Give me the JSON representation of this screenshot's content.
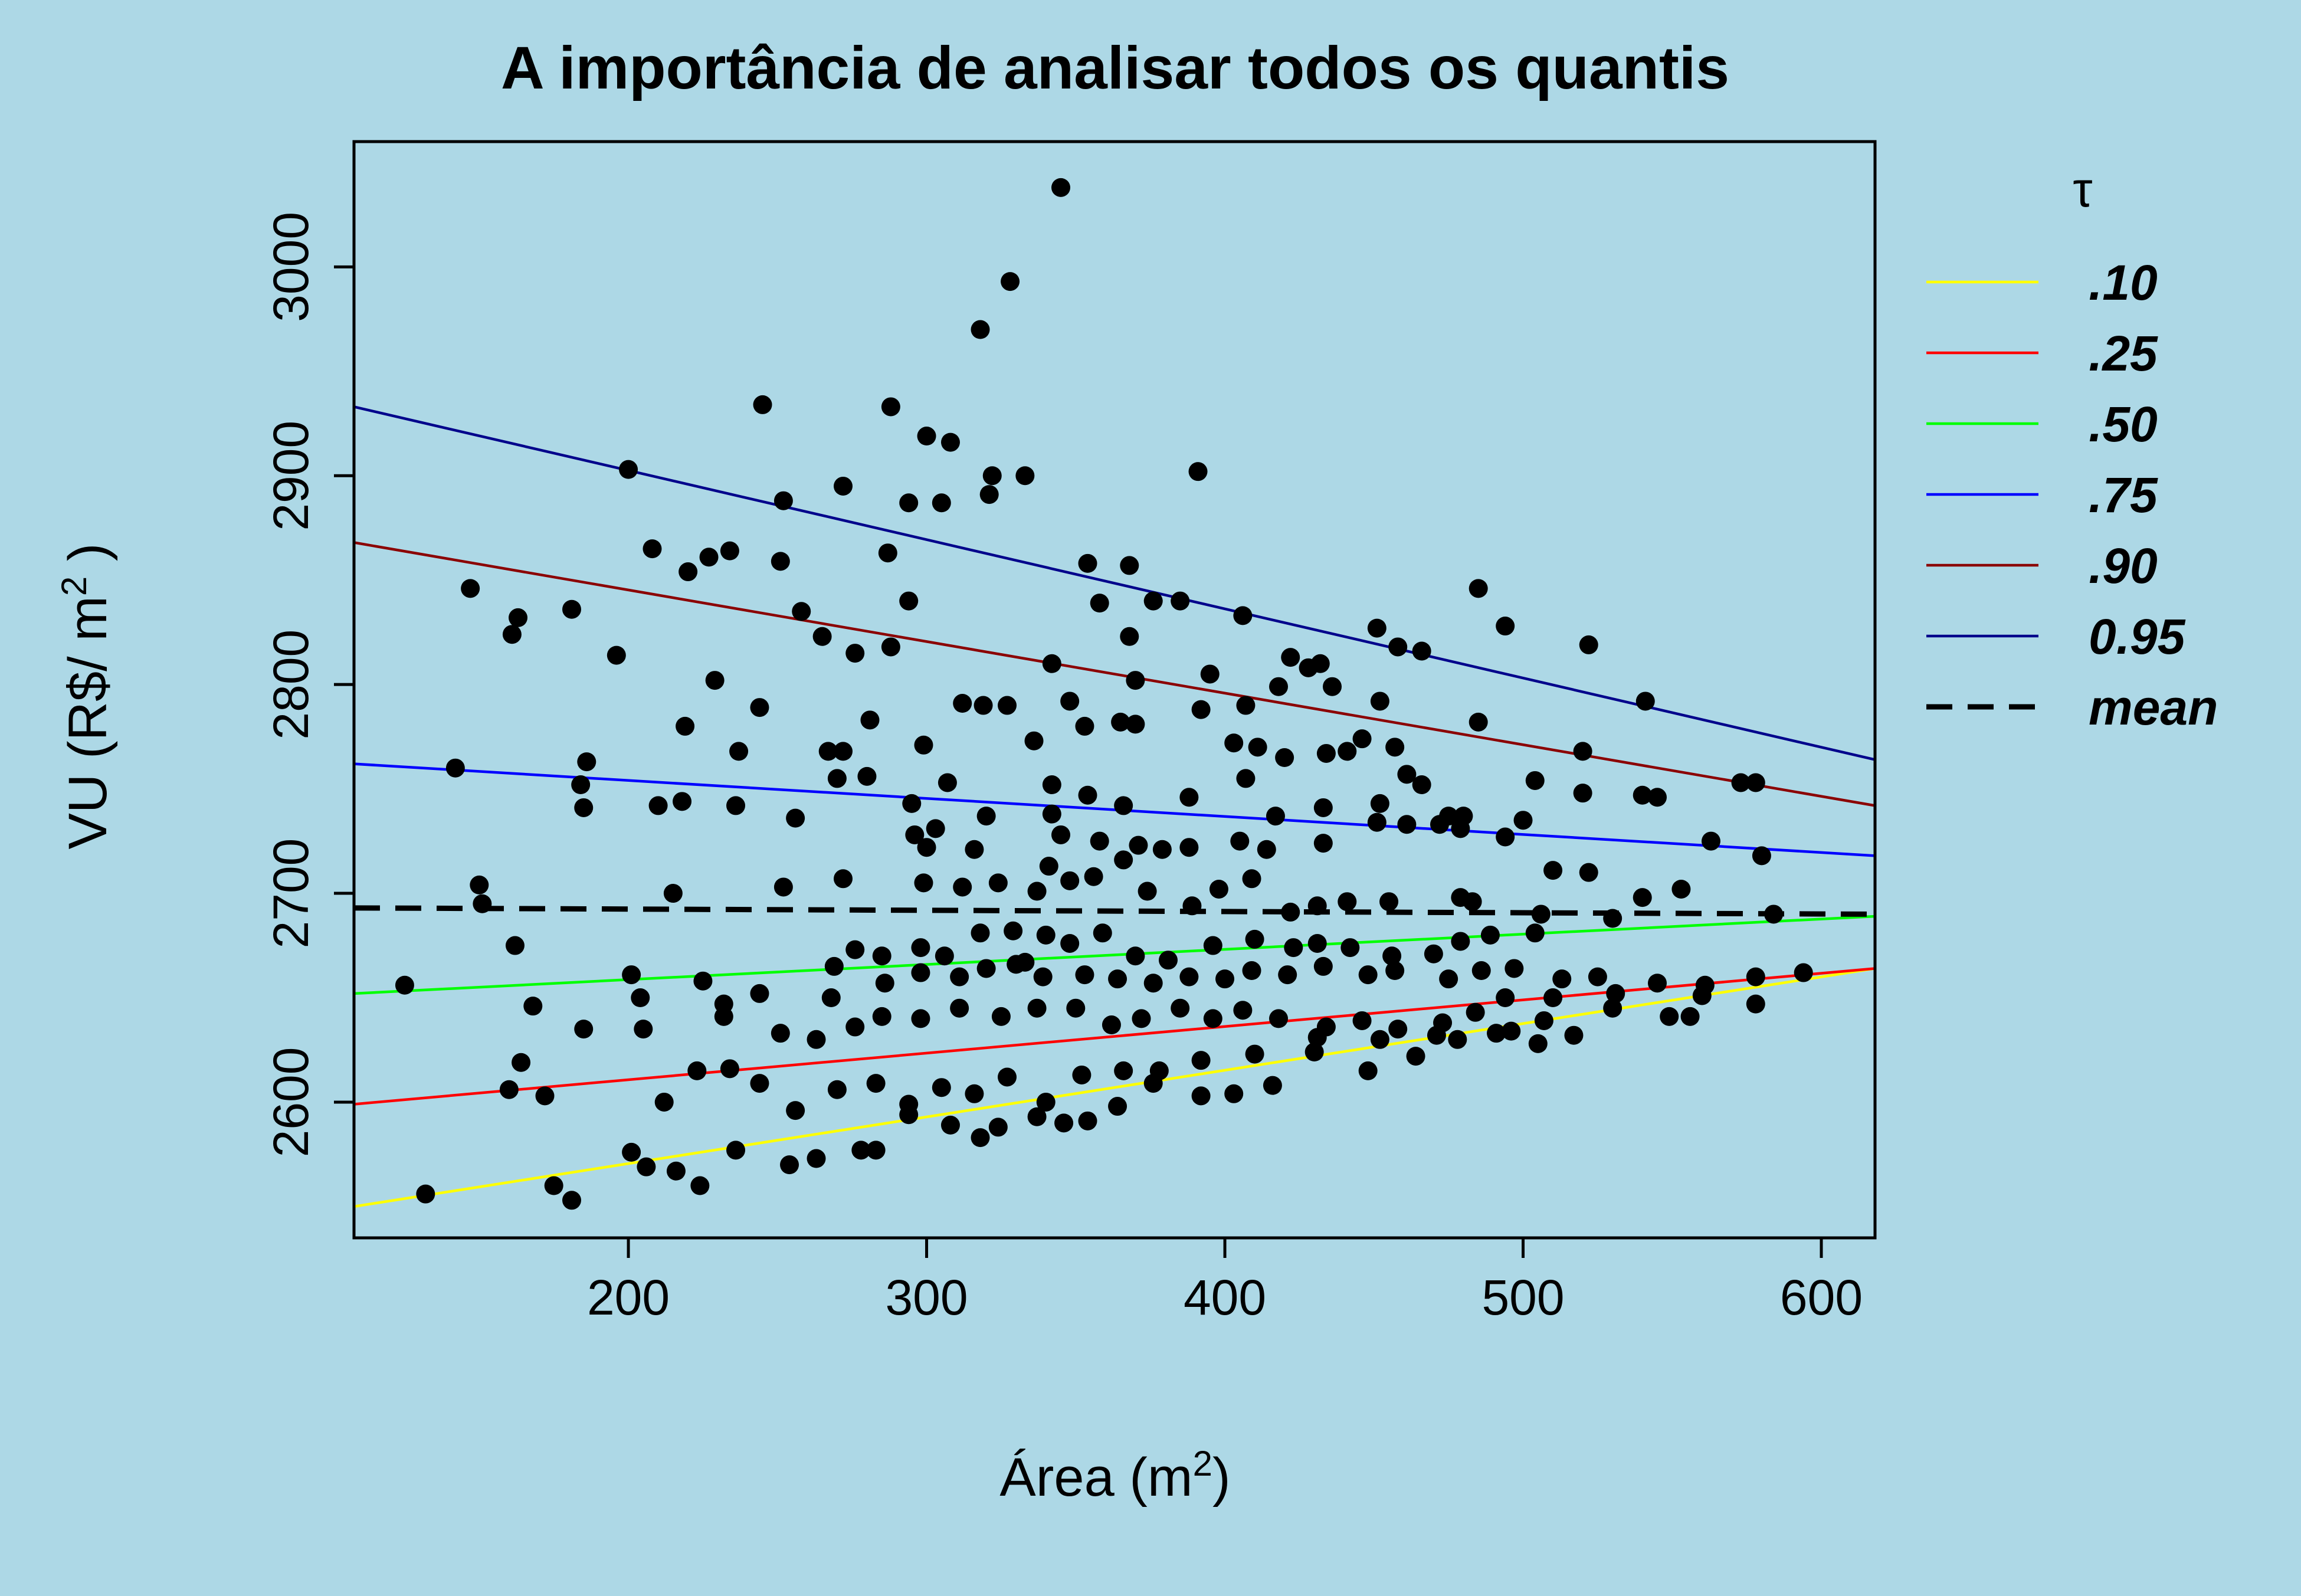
{
  "chart_data": {
    "type": "scatter",
    "title": "A importância de analisar todos os quantis",
    "xlabel_main": "Área (m",
    "xlabel_sup": "2",
    "xlabel_close": ")",
    "ylabel_main": "VU (R$/ m",
    "ylabel_sup": "2",
    "ylabel_close": " )",
    "xlim": [
      108,
      618
    ],
    "ylim": [
      2535,
      3060
    ],
    "x_ticks": [
      200,
      300,
      400,
      500,
      600
    ],
    "y_ticks": [
      2600,
      2700,
      2800,
      2900,
      3000
    ],
    "grid": false,
    "legend_position": "right (outside plot)",
    "legend_title": "τ",
    "lines": [
      {
        "name": ".10",
        "color": "#ffff00",
        "dash": false,
        "points": [
          [
            108,
            2550
          ],
          [
            618,
            2664
          ]
        ]
      },
      {
        "name": ".25",
        "color": "#ff0000",
        "dash": false,
        "points": [
          [
            108,
            2599
          ],
          [
            618,
            2664
          ]
        ]
      },
      {
        "name": ".50",
        "color": "#00ff00",
        "dash": false,
        "points": [
          [
            108,
            2652
          ],
          [
            618,
            2689
          ]
        ]
      },
      {
        "name": ".75",
        "color": "#0000ff",
        "dash": false,
        "points": [
          [
            108,
            2762
          ],
          [
            618,
            2718
          ]
        ]
      },
      {
        "name": ".90",
        "color": "#8b0000",
        "dash": false,
        "points": [
          [
            108,
            2868
          ],
          [
            618,
            2742
          ]
        ]
      },
      {
        "name": "0.95",
        "color": "#00008b",
        "dash": false,
        "points": [
          [
            108,
            2933
          ],
          [
            618,
            2764
          ]
        ]
      },
      {
        "name": "mean",
        "color": "#000000",
        "dash": true,
        "points": [
          [
            108,
            2693
          ],
          [
            618,
            2690
          ]
        ]
      }
    ],
    "points": [
      [
        345,
        3038
      ],
      [
        328,
        2993
      ],
      [
        318,
        2970
      ],
      [
        245,
        2934
      ],
      [
        288,
        2933
      ],
      [
        300,
        2919
      ],
      [
        308,
        2916
      ],
      [
        200,
        2903
      ],
      [
        322,
        2900
      ],
      [
        333,
        2900
      ],
      [
        391,
        2902
      ],
      [
        252,
        2888
      ],
      [
        294,
        2887
      ],
      [
        305,
        2887
      ],
      [
        321,
        2891
      ],
      [
        272,
        2895
      ],
      [
        208,
        2865
      ],
      [
        234,
        2864
      ],
      [
        227,
        2861
      ],
      [
        220,
        2854
      ],
      [
        251,
        2859
      ],
      [
        287,
        2863
      ],
      [
        354,
        2858
      ],
      [
        368,
        2857
      ],
      [
        147,
        2846
      ],
      [
        163,
        2832
      ],
      [
        161,
        2824
      ],
      [
        181,
        2836
      ],
      [
        258,
        2835
      ],
      [
        294,
        2840
      ],
      [
        358,
        2839
      ],
      [
        376,
        2840
      ],
      [
        385,
        2840
      ],
      [
        406,
        2833
      ],
      [
        196,
        2814
      ],
      [
        265,
        2823
      ],
      [
        276,
        2815
      ],
      [
        288,
        2818
      ],
      [
        342,
        2810
      ],
      [
        368,
        2823
      ],
      [
        395,
        2805
      ],
      [
        422,
        2813
      ],
      [
        428,
        2808
      ],
      [
        432,
        2810
      ],
      [
        451,
        2827
      ],
      [
        458,
        2818
      ],
      [
        466,
        2816
      ],
      [
        485,
        2846
      ],
      [
        494,
        2828
      ],
      [
        522,
        2819
      ],
      [
        541,
        2792
      ],
      [
        229,
        2802
      ],
      [
        244,
        2789
      ],
      [
        312,
        2791
      ],
      [
        319,
        2790
      ],
      [
        327,
        2790
      ],
      [
        348,
        2792
      ],
      [
        370,
        2802
      ],
      [
        392,
        2788
      ],
      [
        407,
        2790
      ],
      [
        418,
        2799
      ],
      [
        436,
        2799
      ],
      [
        452,
        2792
      ],
      [
        186,
        2763
      ],
      [
        184,
        2752
      ],
      [
        219,
        2780
      ],
      [
        237,
        2768
      ],
      [
        267,
        2768
      ],
      [
        272,
        2768
      ],
      [
        281,
        2783
      ],
      [
        299,
        2771
      ],
      [
        336,
        2773
      ],
      [
        353,
        2780
      ],
      [
        365,
        2782
      ],
      [
        370,
        2781
      ],
      [
        403,
        2772
      ],
      [
        411,
        2770
      ],
      [
        420,
        2765
      ],
      [
        434,
        2767
      ],
      [
        441,
        2768
      ],
      [
        446,
        2774
      ],
      [
        457,
        2770
      ],
      [
        485,
        2782
      ],
      [
        520,
        2768
      ],
      [
        142,
        2760
      ],
      [
        185,
        2741
      ],
      [
        210,
        2742
      ],
      [
        218,
        2744
      ],
      [
        236,
        2742
      ],
      [
        256,
        2736
      ],
      [
        270,
        2755
      ],
      [
        280,
        2756
      ],
      [
        295,
        2743
      ],
      [
        307,
        2753
      ],
      [
        320,
        2737
      ],
      [
        342,
        2752
      ],
      [
        354,
        2747
      ],
      [
        366,
        2742
      ],
      [
        388,
        2746
      ],
      [
        407,
        2755
      ],
      [
        417,
        2737
      ],
      [
        433,
        2741
      ],
      [
        452,
        2743
      ],
      [
        461,
        2757
      ],
      [
        466,
        2752
      ],
      [
        475,
        2737
      ],
      [
        480,
        2737
      ],
      [
        500,
        2735
      ],
      [
        504,
        2754
      ],
      [
        520,
        2748
      ],
      [
        540,
        2747
      ],
      [
        545,
        2746
      ],
      [
        563,
        2725
      ],
      [
        573,
        2753
      ],
      [
        578,
        2753
      ],
      [
        580,
        2718
      ],
      [
        150,
        2704
      ],
      [
        151,
        2695
      ],
      [
        215,
        2700
      ],
      [
        252,
        2703
      ],
      [
        272,
        2707
      ],
      [
        296,
        2728
      ],
      [
        300,
        2722
      ],
      [
        303,
        2731
      ],
      [
        316,
        2721
      ],
      [
        342,
        2738
      ],
      [
        345,
        2728
      ],
      [
        358,
        2725
      ],
      [
        366,
        2716
      ],
      [
        371,
        2723
      ],
      [
        379,
        2721
      ],
      [
        388,
        2722
      ],
      [
        405,
        2725
      ],
      [
        414,
        2721
      ],
      [
        433,
        2724
      ],
      [
        451,
        2734
      ],
      [
        461,
        2733
      ],
      [
        472,
        2733
      ],
      [
        479,
        2731
      ],
      [
        494,
        2727
      ],
      [
        510,
        2711
      ],
      [
        522,
        2710
      ],
      [
        553,
        2702
      ],
      [
        299,
        2705
      ],
      [
        312,
        2703
      ],
      [
        324,
        2705
      ],
      [
        337,
        2701
      ],
      [
        341,
        2713
      ],
      [
        348,
        2706
      ],
      [
        356,
        2708
      ],
      [
        374,
        2701
      ],
      [
        389,
        2694
      ],
      [
        398,
        2702
      ],
      [
        409,
        2707
      ],
      [
        422,
        2691
      ],
      [
        431,
        2694
      ],
      [
        441,
        2696
      ],
      [
        455,
        2696
      ],
      [
        479,
        2698
      ],
      [
        483,
        2696
      ],
      [
        506,
        2690
      ],
      [
        530,
        2688
      ],
      [
        540,
        2698
      ],
      [
        584,
        2690
      ],
      [
        162,
        2675
      ],
      [
        269,
        2665
      ],
      [
        276,
        2673
      ],
      [
        285,
        2670
      ],
      [
        298,
        2674
      ],
      [
        306,
        2670
      ],
      [
        318,
        2681
      ],
      [
        329,
        2682
      ],
      [
        333,
        2667
      ],
      [
        340,
        2680
      ],
      [
        348,
        2676
      ],
      [
        359,
        2681
      ],
      [
        370,
        2670
      ],
      [
        381,
        2668
      ],
      [
        396,
        2675
      ],
      [
        410,
        2678
      ],
      [
        423,
        2674
      ],
      [
        431,
        2676
      ],
      [
        442,
        2674
      ],
      [
        456,
        2670
      ],
      [
        470,
        2671
      ],
      [
        479,
        2677
      ],
      [
        489,
        2680
      ],
      [
        504,
        2681
      ],
      [
        125,
        2656
      ],
      [
        168,
        2646
      ],
      [
        201,
        2661
      ],
      [
        204,
        2650
      ],
      [
        225,
        2658
      ],
      [
        232,
        2647
      ],
      [
        244,
        2652
      ],
      [
        268,
        2650
      ],
      [
        286,
        2657
      ],
      [
        298,
        2662
      ],
      [
        311,
        2660
      ],
      [
        320,
        2664
      ],
      [
        330,
        2666
      ],
      [
        339,
        2660
      ],
      [
        353,
        2661
      ],
      [
        364,
        2659
      ],
      [
        376,
        2657
      ],
      [
        388,
        2660
      ],
      [
        400,
        2659
      ],
      [
        409,
        2663
      ],
      [
        421,
        2661
      ],
      [
        433,
        2665
      ],
      [
        448,
        2661
      ],
      [
        457,
        2663
      ],
      [
        475,
        2659
      ],
      [
        486,
        2663
      ],
      [
        497,
        2664
      ],
      [
        513,
        2659
      ],
      [
        525,
        2660
      ],
      [
        545,
        2657
      ],
      [
        561,
        2656
      ],
      [
        594,
        2662
      ],
      [
        164,
        2619
      ],
      [
        185,
        2635
      ],
      [
        205,
        2635
      ],
      [
        232,
        2641
      ],
      [
        251,
        2633
      ],
      [
        263,
        2630
      ],
      [
        276,
        2636
      ],
      [
        285,
        2641
      ],
      [
        298,
        2640
      ],
      [
        311,
        2645
      ],
      [
        325,
        2641
      ],
      [
        337,
        2645
      ],
      [
        350,
        2645
      ],
      [
        362,
        2637
      ],
      [
        372,
        2640
      ],
      [
        385,
        2645
      ],
      [
        396,
        2640
      ],
      [
        406,
        2644
      ],
      [
        418,
        2640
      ],
      [
        434,
        2636
      ],
      [
        446,
        2639
      ],
      [
        458,
        2635
      ],
      [
        471,
        2632
      ],
      [
        484,
        2643
      ],
      [
        496,
        2634
      ],
      [
        507,
        2639
      ],
      [
        530,
        2645
      ],
      [
        549,
        2641
      ],
      [
        556,
        2641
      ],
      [
        578,
        2647
      ],
      [
        160,
        2606
      ],
      [
        172,
        2603
      ],
      [
        212,
        2600
      ],
      [
        223,
        2615
      ],
      [
        234,
        2616
      ],
      [
        244,
        2609
      ],
      [
        256,
        2596
      ],
      [
        270,
        2606
      ],
      [
        283,
        2609
      ],
      [
        294,
        2599
      ],
      [
        305,
        2607
      ],
      [
        316,
        2604
      ],
      [
        327,
        2612
      ],
      [
        340,
        2600
      ],
      [
        352,
        2613
      ],
      [
        366,
        2615
      ],
      [
        378,
        2615
      ],
      [
        392,
        2603
      ],
      [
        403,
        2604
      ],
      [
        416,
        2608
      ],
      [
        430,
        2624
      ],
      [
        448,
        2615
      ],
      [
        464,
        2622
      ],
      [
        478,
        2630
      ],
      [
        491,
        2633
      ],
      [
        505,
        2628
      ],
      [
        517,
        2632
      ],
      [
        132,
        2556
      ],
      [
        175,
        2560
      ],
      [
        181,
        2553
      ],
      [
        201,
        2576
      ],
      [
        206,
        2569
      ],
      [
        216,
        2567
      ],
      [
        224,
        2560
      ],
      [
        236,
        2577
      ],
      [
        254,
        2570
      ],
      [
        263,
        2573
      ],
      [
        278,
        2577
      ],
      [
        283,
        2577
      ],
      [
        294,
        2594
      ],
      [
        308,
        2589
      ],
      [
        318,
        2583
      ],
      [
        324,
        2588
      ],
      [
        337,
        2593
      ],
      [
        346,
        2590
      ],
      [
        354,
        2591
      ],
      [
        364,
        2598
      ],
      [
        376,
        2609
      ],
      [
        392,
        2620
      ],
      [
        410,
        2623
      ],
      [
        431,
        2631
      ],
      [
        452,
        2630
      ],
      [
        473,
        2638
      ],
      [
        494,
        2650
      ],
      [
        510,
        2650
      ],
      [
        531,
        2652
      ],
      [
        560,
        2651
      ],
      [
        578,
        2660
      ]
    ]
  }
}
